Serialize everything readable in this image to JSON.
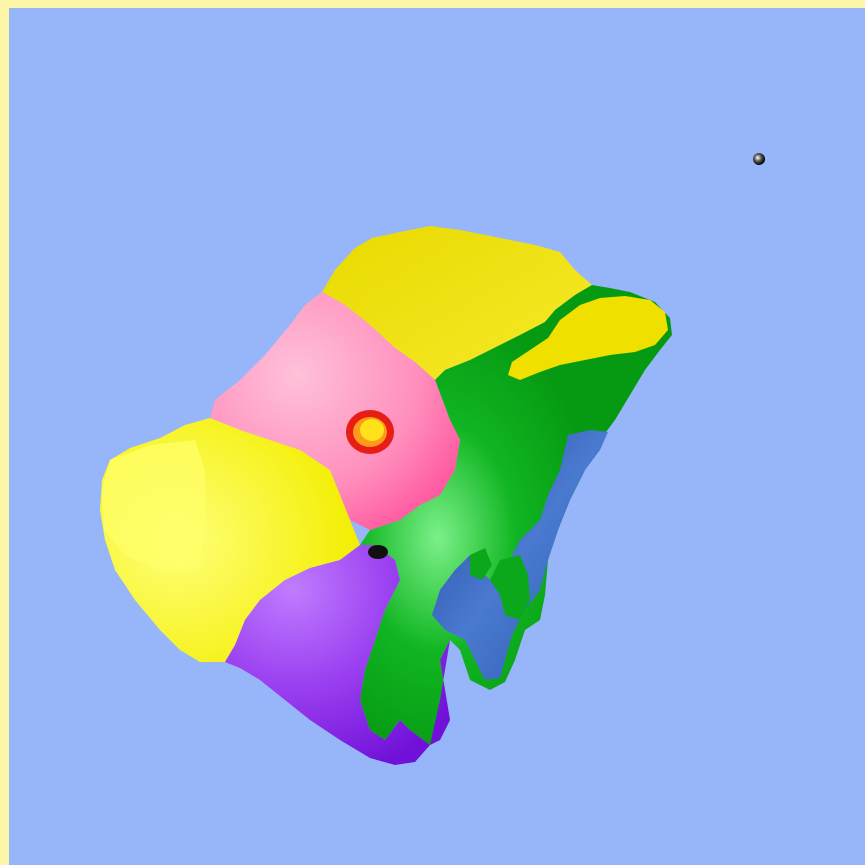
{
  "scene": {
    "description_free": true,
    "colors": {
      "frame": "#fdf5a8",
      "ocean": "#97b6f9",
      "yellow": "#f2e400",
      "pink": "#ff8fbd",
      "green": "#0aa81a",
      "purple": "#9a3ff0",
      "blue": "#2f5fb5",
      "hotspot_outer": "#e81e14",
      "hotspot_inner": "#ffe21a",
      "marker": "#111111"
    },
    "regions": [
      {
        "id": "yellow-north",
        "color_key": "yellow"
      },
      {
        "id": "pink-center",
        "color_key": "pink"
      },
      {
        "id": "yellow-west",
        "color_key": "yellow"
      },
      {
        "id": "purple-south",
        "color_key": "purple"
      },
      {
        "id": "green-east",
        "color_key": "green"
      },
      {
        "id": "blue-east",
        "color_key": "blue"
      },
      {
        "id": "yellow-northeast",
        "color_key": "yellow"
      }
    ]
  }
}
